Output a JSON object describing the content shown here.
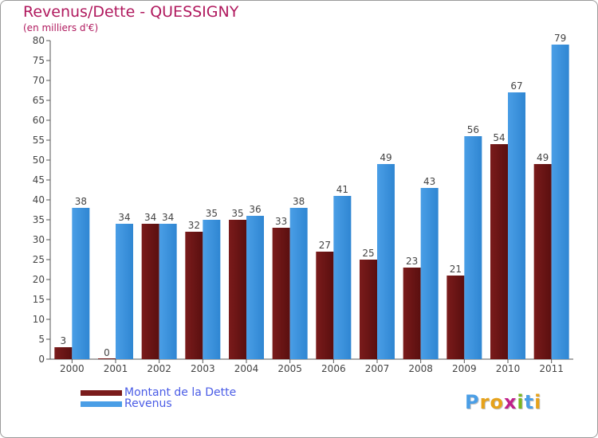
{
  "chart_data": {
    "type": "bar",
    "title": "Revenus/Dette - QUESSIGNY",
    "subtitle": "(en milliers d'€)",
    "xlabel": "",
    "ylabel": "",
    "ylim": [
      0,
      80
    ],
    "yticks": [
      0,
      5,
      10,
      15,
      20,
      25,
      30,
      35,
      40,
      45,
      50,
      55,
      60,
      65,
      70,
      75,
      80
    ],
    "grid": false,
    "legend_position": "bottom-left",
    "categories": [
      "2000",
      "2001",
      "2002",
      "2003",
      "2004",
      "2005",
      "2006",
      "2007",
      "2008",
      "2009",
      "2010",
      "2011"
    ],
    "series": [
      {
        "name": "Montant de la Dette",
        "color": "#7a1b1b",
        "values": [
          3,
          0,
          34,
          32,
          35,
          33,
          27,
          25,
          23,
          21,
          54,
          49
        ]
      },
      {
        "name": "Revenus",
        "color": "#4a9ee6",
        "values": [
          38,
          34,
          34,
          35,
          36,
          38,
          41,
          49,
          43,
          56,
          67,
          79
        ]
      }
    ]
  },
  "logo": {
    "text": "Proxiti",
    "letter_colors": [
      "#4a9ee6",
      "#e6a21b",
      "#e6a21b",
      "#c0208a",
      "#7ab51e",
      "#4a9ee6",
      "#e6a21b"
    ]
  }
}
